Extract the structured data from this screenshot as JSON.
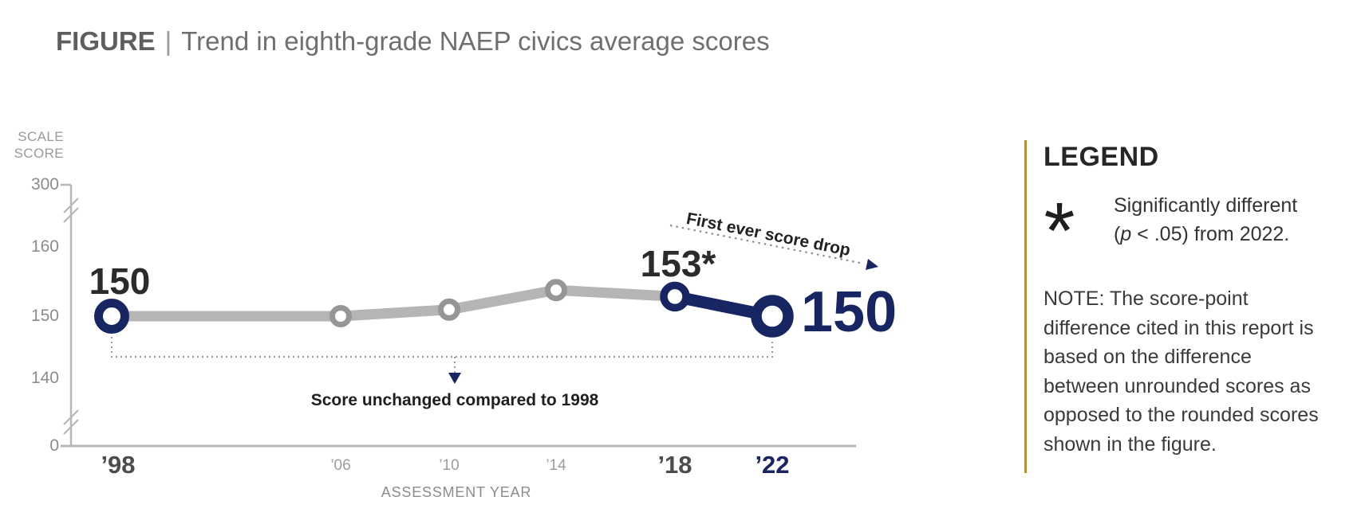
{
  "title": {
    "figure_label": "FIGURE",
    "divider": "|",
    "main": "Trend in eighth-grade NAEP civics average scores"
  },
  "chart_data": {
    "type": "line",
    "title": "Trend in eighth-grade NAEP civics average scores",
    "xlabel": "ASSESSMENT YEAR",
    "ylabel": "SCALE SCORE",
    "ylabel_lines": [
      "SCALE",
      "SCORE"
    ],
    "x": [
      1998,
      2006,
      2010,
      2014,
      2018,
      2022
    ],
    "x_tick_labels": [
      "’98",
      "’06",
      "’10",
      "’14",
      "’18",
      "’22"
    ],
    "values": [
      150,
      150,
      151,
      154,
      153,
      150
    ],
    "series": [
      {
        "name": "historic-segment-1998-2018",
        "x": [
          1998,
          2006,
          2010,
          2014,
          2018
        ],
        "values": [
          150,
          150,
          151,
          154,
          153
        ],
        "color": "#b5b5b5"
      },
      {
        "name": "latest-segment-2018-2022",
        "x": [
          2018,
          2022
        ],
        "values": [
          153,
          150
        ],
        "color": "#172663"
      }
    ],
    "y_ticks": [
      0,
      140,
      150,
      160,
      300
    ],
    "y_tick_labels": [
      "0",
      "140",
      "150",
      "160",
      "300"
    ],
    "ylim": [
      0,
      300
    ],
    "axis_breaks": [
      [
        0,
        140
      ],
      [
        160,
        300
      ]
    ],
    "grid": false,
    "point_labels": [
      {
        "year": 1998,
        "label": "150"
      },
      {
        "year": 2018,
        "label": "153*"
      },
      {
        "year": 2022,
        "label": "150"
      }
    ],
    "annotations": [
      "First ever score drop",
      "Score unchanged compared to 1998"
    ]
  },
  "legend": {
    "heading": "LEGEND",
    "asterisk": "*",
    "sig_line1": "Significantly different",
    "sig_line2_pre": "(",
    "sig_line2_p": "p",
    "sig_line2_post": " < .05) from 2022.",
    "note_lines": [
      "NOTE: The score-point",
      "difference cited in this report is",
      "based on the difference",
      "between unrounded scores as",
      "opposed to the rounded scores",
      "shown in the figure."
    ]
  },
  "colors": {
    "navy": "#172663",
    "line_gray": "#b5b5b5",
    "marker_gray": "#969696",
    "axis_gray": "#b7b7b7",
    "dotted_gray": "#9a9a9a",
    "accent_gold": "#c08e2e",
    "text_dark": "#2b2b2b",
    "text_gray": "#6f6f6f"
  }
}
